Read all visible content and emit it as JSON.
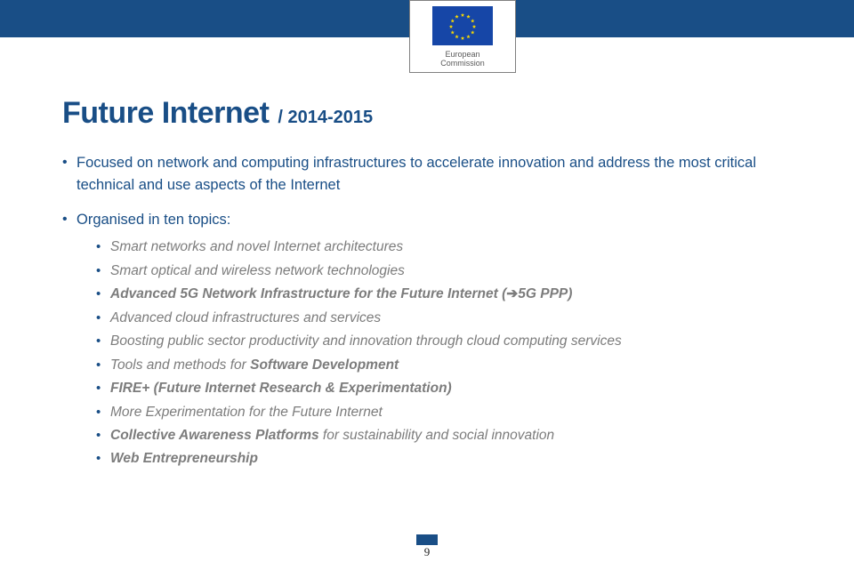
{
  "colors": {
    "brand_blue": "#194e86",
    "body_grey": "#7c7c7c",
    "eu_flag_bg": "#1646a7",
    "eu_star": "#f9d900",
    "border_grey": "#808080",
    "page_bg": "#ffffff"
  },
  "logo": {
    "line1": "European",
    "line2": "Commission"
  },
  "title": {
    "main": "Future Internet",
    "sub": "/ 2014-2015"
  },
  "bullets": [
    {
      "text": "Focused on network and computing infrastructures to accelerate innovation and address the most critical technical and use aspects of the Internet"
    },
    {
      "text": "Organised in ten topics:",
      "children": [
        {
          "text": "Smart networks and novel Internet architectures"
        },
        {
          "text": "Smart optical and wireless network technologies"
        },
        {
          "prefix": "Advanced 5G Network Infrastructure for the Future Internet (",
          "arrow": "➔",
          "suffix": "5G PPP)",
          "bold": true
        },
        {
          "text": "Advanced cloud infrastructures and services"
        },
        {
          "text": "Boosting public sector productivity and innovation through cloud computing services"
        },
        {
          "prefix": "Tools and methods for ",
          "bold_part": "Software Development"
        },
        {
          "bold_part": "FIRE+ (Future Internet Research & Experimentation)"
        },
        {
          "text": "More Experimentation for the Future Internet"
        },
        {
          "bold_part": "Collective Awareness Platforms",
          "suffix": " for sustainability and social innovation"
        },
        {
          "bold_part": "Web Entrepreneurship"
        }
      ]
    }
  ],
  "page_number": "9"
}
